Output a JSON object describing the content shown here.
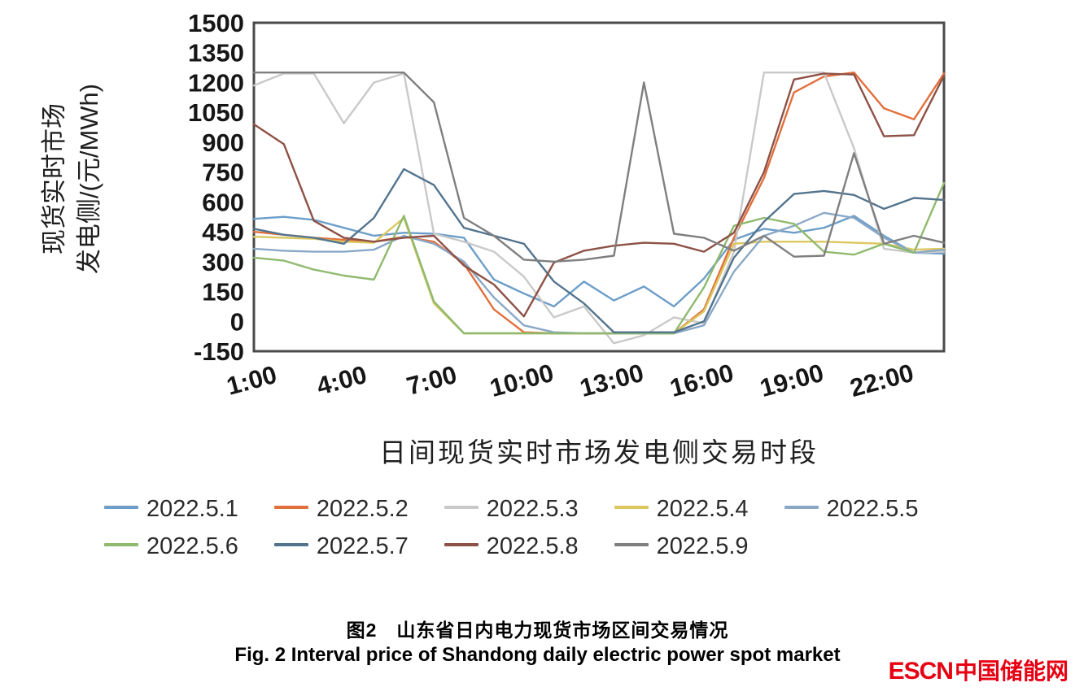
{
  "chart_data": {
    "type": "line",
    "x": [
      1,
      2,
      3,
      4,
      5,
      6,
      7,
      8,
      9,
      10,
      11,
      12,
      13,
      14,
      15,
      16,
      17,
      18,
      19,
      20,
      21,
      22,
      23,
      24
    ],
    "x_tick_hours": [
      1,
      4,
      7,
      10,
      13,
      16,
      19,
      22
    ],
    "x_tick_labels": [
      "1:00",
      "4:00",
      "7:00",
      "10:00",
      "13:00",
      "16:00",
      "19:00",
      "22:00"
    ],
    "y_ticks": [
      1500,
      1350,
      1200,
      1050,
      900,
      750,
      600,
      450,
      300,
      150,
      0,
      -150
    ],
    "ylim": [
      -150,
      1500
    ],
    "xlabel": "日间现货实时市场发电侧交易时段",
    "ylabel_line1": "现货实时市场",
    "ylabel_line2": "发电侧/(元/MWh)",
    "grid": false,
    "legend_position": "bottom",
    "series": [
      {
        "name": "2022.5.1",
        "color": "#6d9ec9",
        "values": [
          515,
          525,
          510,
          470,
          430,
          445,
          440,
          420,
          210,
          140,
          75,
          200,
          105,
          175,
          75,
          215,
          410,
          465,
          445,
          470,
          530,
          430,
          345,
          340
        ]
      },
      {
        "name": "2022.5.2",
        "color": "#e1703c",
        "values": [
          450,
          435,
          420,
          410,
          400,
          425,
          400,
          290,
          60,
          -55,
          -60,
          -60,
          -60,
          -60,
          -60,
          60,
          420,
          720,
          1150,
          1230,
          1250,
          1070,
          1015,
          1245
        ]
      },
      {
        "name": "2022.5.3",
        "color": "#c9c9c9",
        "values": [
          1185,
          1245,
          1245,
          995,
          1200,
          1245,
          440,
          400,
          350,
          225,
          20,
          75,
          -110,
          -70,
          20,
          -10,
          350,
          1250,
          1250,
          1250,
          870,
          365,
          345,
          350
        ]
      },
      {
        "name": "2022.5.4",
        "color": "#dcc75f",
        "values": [
          425,
          420,
          415,
          400,
          395,
          520,
          90,
          -60,
          -60,
          -60,
          -60,
          -60,
          -60,
          -60,
          -60,
          50,
          390,
          400,
          400,
          400,
          395,
          390,
          360,
          365
        ]
      },
      {
        "name": "2022.5.5",
        "color": "#8aa8c6",
        "values": [
          365,
          355,
          350,
          350,
          360,
          430,
          390,
          300,
          120,
          -20,
          -55,
          -60,
          -60,
          -60,
          -60,
          -20,
          250,
          430,
          480,
          545,
          520,
          420,
          345,
          360
        ]
      },
      {
        "name": "2022.5.6",
        "color": "#8fba6e",
        "values": [
          320,
          305,
          260,
          230,
          210,
          530,
          100,
          -60,
          -60,
          -60,
          -60,
          -60,
          -60,
          -60,
          -60,
          170,
          480,
          520,
          490,
          350,
          335,
          390,
          345,
          695
        ]
      },
      {
        "name": "2022.5.7",
        "color": "#53748e",
        "values": [
          465,
          435,
          420,
          390,
          520,
          765,
          685,
          470,
          430,
          390,
          200,
          90,
          -55,
          -55,
          -55,
          0,
          320,
          500,
          640,
          655,
          635,
          565,
          620,
          610
        ]
      },
      {
        "name": "2022.5.8",
        "color": "#8e5146",
        "values": [
          990,
          890,
          505,
          420,
          400,
          420,
          430,
          280,
          185,
          25,
          295,
          355,
          380,
          395,
          390,
          350,
          445,
          750,
          1215,
          1245,
          1240,
          930,
          935,
          1235
        ]
      },
      {
        "name": "2022.5.9",
        "color": "#7f7f7f",
        "values": [
          1250,
          1250,
          1250,
          1250,
          1250,
          1250,
          1100,
          520,
          430,
          310,
          300,
          310,
          330,
          1200,
          440,
          420,
          355,
          430,
          325,
          330,
          845,
          390,
          430,
          395
        ]
      }
    ]
  },
  "caption": {
    "zh": "图2　山东省日内电力现货市场区间交易情况",
    "en": "Fig. 2   Interval price of Shandong daily electric power spot market"
  },
  "logo": {
    "text_en": "ESCN",
    "text_zh": "中国储能网",
    "color": "#e60012"
  }
}
